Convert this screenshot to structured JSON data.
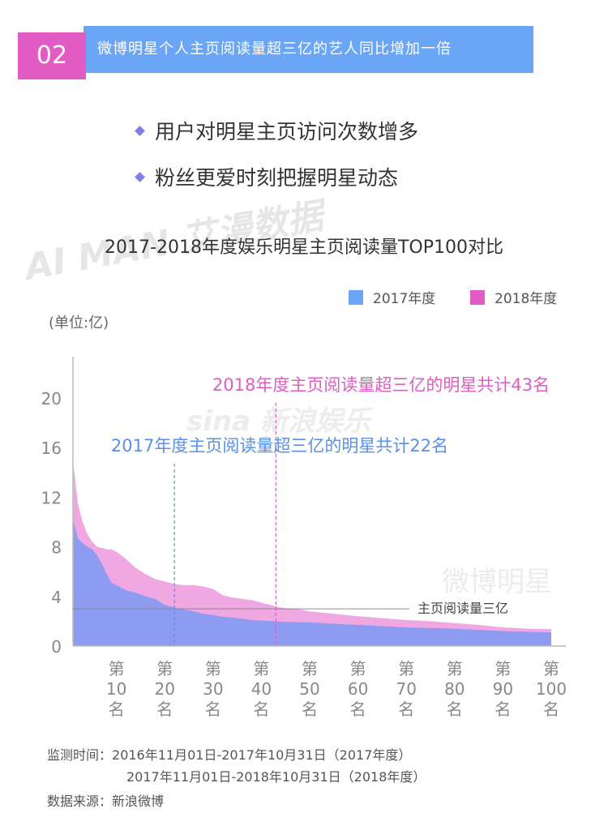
{
  "header": {
    "number": "02",
    "title": "微博明星个人主页阅读量超三亿的艺人同比增加一倍"
  },
  "bullets": [
    "用户对明星主页访问次数增多",
    "粉丝更爱时刻把握明星动态"
  ],
  "watermarks": [
    "AI MAN 艾漫数据",
    "sina 新浪娱乐",
    "微博明星"
  ],
  "chart_data": {
    "type": "area",
    "title": "2017-2018年度娱乐明星主页阅读量TOP100对比",
    "unit_label": "(单位:亿)",
    "xlabel": "",
    "ylabel": "",
    "ylim": [
      0,
      23
    ],
    "y_ticks": [
      0,
      4,
      8,
      12,
      16,
      20
    ],
    "x_ticks": [
      {
        "rank": 10,
        "label": [
          "第",
          "10",
          "名"
        ]
      },
      {
        "rank": 20,
        "label": [
          "第",
          "20",
          "名"
        ]
      },
      {
        "rank": 30,
        "label": [
          "第",
          "30",
          "名"
        ]
      },
      {
        "rank": 40,
        "label": [
          "第",
          "40",
          "名"
        ]
      },
      {
        "rank": 50,
        "label": [
          "第",
          "50",
          "名"
        ]
      },
      {
        "rank": 60,
        "label": [
          "第",
          "60",
          "名"
        ]
      },
      {
        "rank": 70,
        "label": [
          "第",
          "70",
          "名"
        ]
      },
      {
        "rank": 80,
        "label": [
          "第",
          "80",
          "名"
        ]
      },
      {
        "rank": 90,
        "label": [
          "第",
          "90",
          "名"
        ]
      },
      {
        "rank": 100,
        "label": [
          "第",
          "100",
          "名"
        ]
      }
    ],
    "legend_position": "top-right",
    "series": [
      {
        "name": "2018年度",
        "color": "#efa8e2",
        "legend_color": "#e05cc4",
        "points": [
          [
            1,
            15.0
          ],
          [
            2,
            11.5
          ],
          [
            3,
            10.0
          ],
          [
            4,
            9.0
          ],
          [
            5,
            8.4
          ],
          [
            6,
            8.0
          ],
          [
            7,
            7.9
          ],
          [
            8,
            7.8
          ],
          [
            9,
            7.8
          ],
          [
            10,
            7.6
          ],
          [
            12,
            7.0
          ],
          [
            14,
            6.3
          ],
          [
            16,
            5.8
          ],
          [
            18,
            5.4
          ],
          [
            20,
            5.2
          ],
          [
            22,
            5.0
          ],
          [
            24,
            4.9
          ],
          [
            26,
            4.9
          ],
          [
            28,
            4.8
          ],
          [
            30,
            4.6
          ],
          [
            32,
            4.1
          ],
          [
            34,
            3.9
          ],
          [
            36,
            3.8
          ],
          [
            38,
            3.7
          ],
          [
            40,
            3.5
          ],
          [
            42,
            3.3
          ],
          [
            44,
            3.1
          ],
          [
            46,
            3.0
          ],
          [
            48,
            2.95
          ],
          [
            50,
            2.8
          ],
          [
            55,
            2.6
          ],
          [
            60,
            2.4
          ],
          [
            65,
            2.25
          ],
          [
            70,
            2.1
          ],
          [
            75,
            2.0
          ],
          [
            80,
            1.85
          ],
          [
            85,
            1.7
          ],
          [
            90,
            1.5
          ],
          [
            95,
            1.4
          ],
          [
            100,
            1.35
          ]
        ]
      },
      {
        "name": "2017年度",
        "color": "#8d9cf0",
        "legend_color": "#6aa6f5",
        "points": [
          [
            1,
            10.2
          ],
          [
            2,
            8.7
          ],
          [
            3,
            8.3
          ],
          [
            4,
            8.0
          ],
          [
            5,
            7.8
          ],
          [
            6,
            7.3
          ],
          [
            7,
            6.6
          ],
          [
            8,
            5.8
          ],
          [
            9,
            5.1
          ],
          [
            10,
            4.9
          ],
          [
            12,
            4.5
          ],
          [
            14,
            4.3
          ],
          [
            16,
            4.0
          ],
          [
            18,
            3.8
          ],
          [
            20,
            3.3
          ],
          [
            22,
            3.1
          ],
          [
            24,
            2.95
          ],
          [
            26,
            2.8
          ],
          [
            28,
            2.6
          ],
          [
            30,
            2.5
          ],
          [
            32,
            2.35
          ],
          [
            34,
            2.3
          ],
          [
            36,
            2.2
          ],
          [
            38,
            2.1
          ],
          [
            40,
            2.05
          ],
          [
            45,
            1.95
          ],
          [
            50,
            1.9
          ],
          [
            55,
            1.8
          ],
          [
            60,
            1.7
          ],
          [
            65,
            1.6
          ],
          [
            70,
            1.5
          ],
          [
            75,
            1.45
          ],
          [
            80,
            1.4
          ],
          [
            85,
            1.3
          ],
          [
            90,
            1.2
          ],
          [
            95,
            1.15
          ],
          [
            100,
            1.1
          ]
        ]
      }
    ],
    "threshold": {
      "value": 3,
      "label": "主页阅读量三亿"
    },
    "annotations": [
      {
        "text": "2018年度主页阅读量超三亿的明星共计43名",
        "rank": 43,
        "color": "#e05cc4"
      },
      {
        "text": "2017年度主页阅读量超三亿的明星共计22名",
        "rank": 22,
        "color": "#5a90e8"
      }
    ]
  },
  "footer": {
    "time_label": "监测时间：",
    "time_2017": "2016年11月01日-2017年10月31日（2017年度）",
    "time_2018": "2017年11月01日-2018年10月31日（2018年度）",
    "source_label": "数据来源：",
    "source": "新浪微博"
  }
}
